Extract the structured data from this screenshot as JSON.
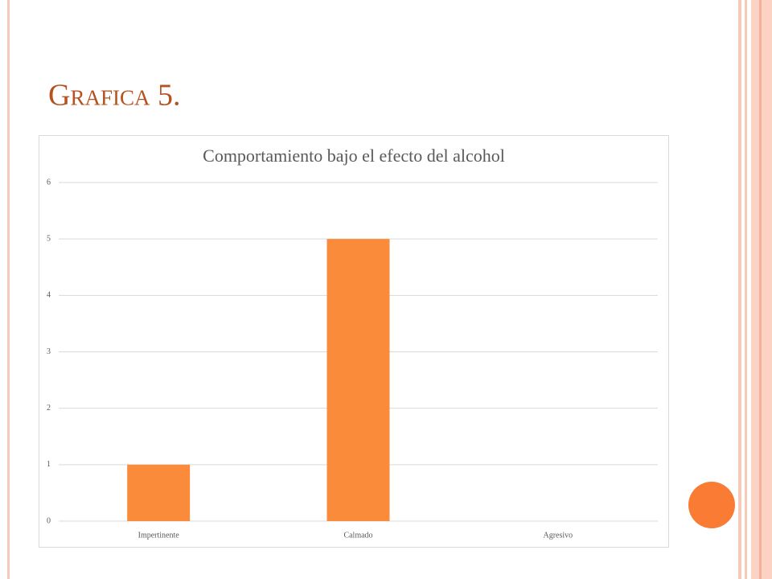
{
  "slide_title": "Grafica 5.",
  "chart_data": {
    "type": "bar",
    "title": "Comportamiento bajo el efecto del alcohol",
    "categories": [
      "Impertinente",
      "Calmado",
      "Agresivo"
    ],
    "values": [
      1,
      5,
      0
    ],
    "color": "#f98b3a",
    "ylim": [
      0,
      6
    ],
    "yticks": [
      0,
      1,
      2,
      3,
      4,
      5,
      6
    ],
    "grid": true
  }
}
